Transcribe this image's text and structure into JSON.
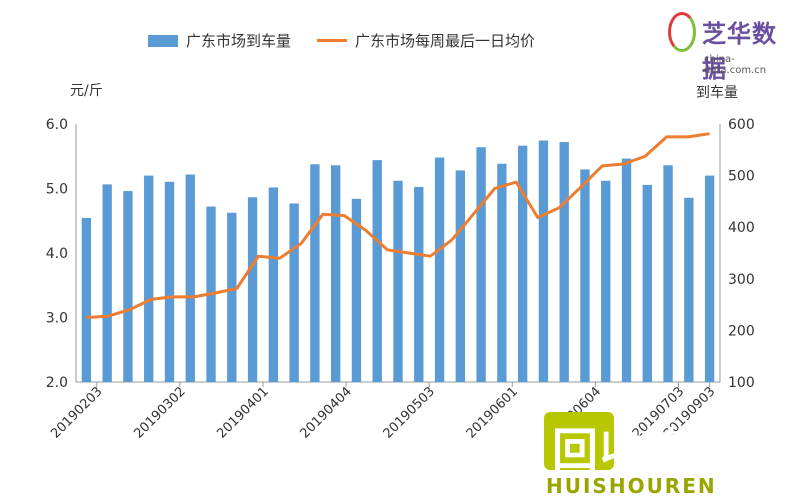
{
  "chart_data": {
    "type": "bar+line",
    "left_unit": "元/斤",
    "right_unit": "到车量",
    "left_ylim": [
      2.0,
      6.0
    ],
    "right_ylim": [
      100,
      600
    ],
    "left_ticks": [
      "2.0",
      "3.0",
      "4.0",
      "5.0",
      "6.0"
    ],
    "right_ticks": [
      "100",
      "200",
      "300",
      "400",
      "500",
      "600"
    ],
    "x_labels_shown": [
      "20190203",
      "20190302",
      "20190401",
      "20190404",
      "20190503",
      "20190601",
      "20190604",
      "20190703",
      "20190903"
    ],
    "legend": {
      "bar": "广东市场到车量",
      "line": "广东市场每周最后一日均价"
    },
    "series": [
      {
        "name": "广东市场到车量",
        "kind": "bar",
        "axis": "right",
        "color": "#5b9bd5",
        "values": [
          418,
          483,
          470,
          500,
          488,
          502,
          440,
          428,
          458,
          477,
          446,
          522,
          520,
          455,
          530,
          490,
          478,
          535,
          510,
          555,
          523,
          558,
          568,
          565,
          512,
          490,
          533,
          482,
          520,
          457,
          500
        ]
      },
      {
        "name": "广东市场每周最后一日均价",
        "kind": "line",
        "axis": "left",
        "color": "#ed7d31",
        "values": [
          3.0,
          3.02,
          3.12,
          3.28,
          3.32,
          3.32,
          3.38,
          3.45,
          3.95,
          3.92,
          4.15,
          4.6,
          4.58,
          4.35,
          4.05,
          4.0,
          3.95,
          4.2,
          4.6,
          5.0,
          5.1,
          4.55,
          4.7,
          5.02,
          5.35,
          5.38,
          5.5,
          5.8,
          5.8,
          5.85
        ]
      }
    ]
  },
  "branding": {
    "logo_name": "芝华数据",
    "logo_url": "china-data.com.cn",
    "watermark_main": "回收人",
    "watermark_sub": "HUISHOUREN"
  }
}
